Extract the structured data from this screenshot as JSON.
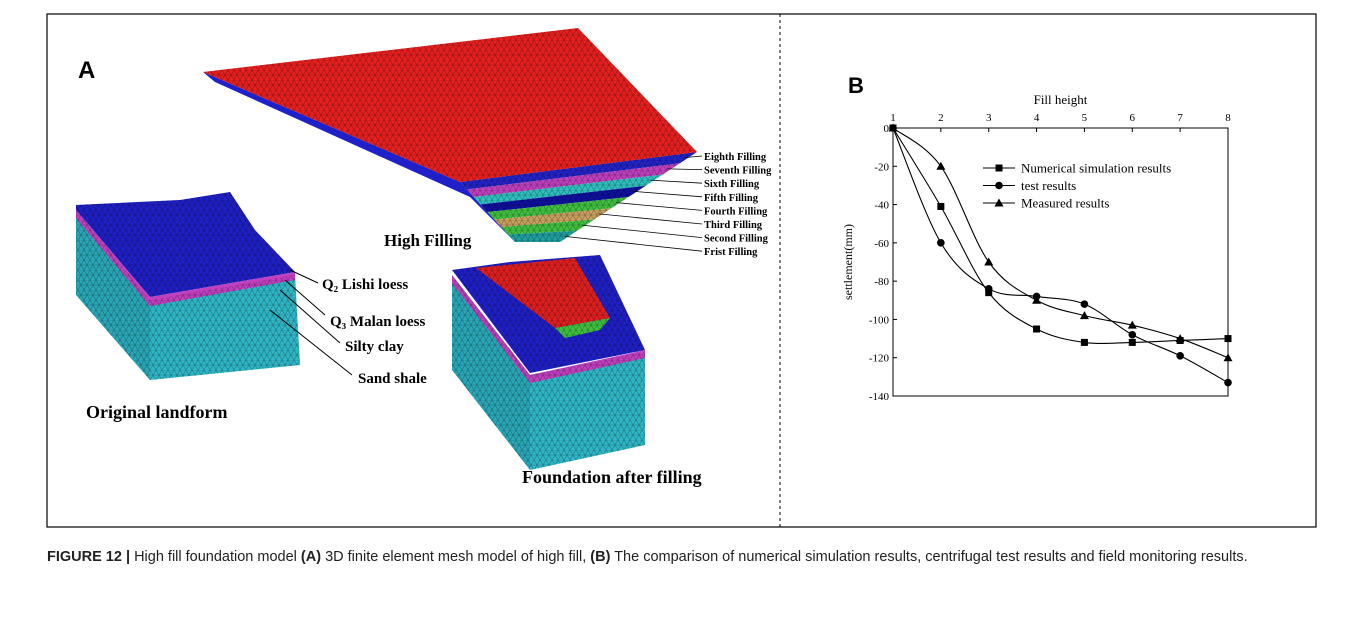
{
  "panel_a": {
    "label": "A",
    "layers": [
      "Eighth Filling",
      "Seventh Filling",
      "Sixth Filling",
      "Fifth Filling",
      "Fourth Filling",
      "Third Filling",
      "Second Filling",
      "Frist Filling"
    ],
    "high_filling": "High Filling",
    "strata": [
      "Q₂ Lishi loess",
      "Q₃ Malan loess",
      "Silty clay",
      "Sand shale"
    ],
    "original": "Original landform",
    "foundation": "Foundation after filling"
  },
  "chart_data": {
    "type": "line",
    "panel_label": "B",
    "x_label": "Fill height",
    "y_label": "settlement(mm)",
    "x": [
      1,
      2,
      3,
      4,
      5,
      6,
      7,
      8
    ],
    "xlim": [
      1,
      8
    ],
    "xticks": [
      1,
      2,
      3,
      4,
      5,
      6,
      7,
      8
    ],
    "ylim": [
      -140,
      0
    ],
    "yticks": [
      0,
      -20,
      -40,
      -60,
      -80,
      -100,
      -120,
      -140
    ],
    "legend": "upper-center",
    "series": [
      {
        "name": "Numerical simulation results",
        "color": "#000000",
        "marker": "square",
        "values": [
          0,
          -41,
          -86,
          -105,
          -112,
          -112,
          -111,
          -110
        ]
      },
      {
        "name": "test results",
        "color": "#000000",
        "marker": "circle",
        "values": [
          0,
          -60,
          -84,
          -88,
          -92,
          -108,
          -119,
          -133
        ]
      },
      {
        "name": "Measured results",
        "color": "#000000",
        "marker": "triangle",
        "values": [
          0,
          -20,
          -70,
          -90,
          -98,
          -103,
          -110,
          -120
        ]
      }
    ]
  },
  "caption": {
    "label": "FIGURE 12 |",
    "text1": "High fill foundation model",
    "a": "(A)",
    "text2": "3D finite element mesh model of high fill,",
    "b": "(B)",
    "text3": "The comparison of numerical simulation results, centrifugal test results and field monitoring results."
  }
}
